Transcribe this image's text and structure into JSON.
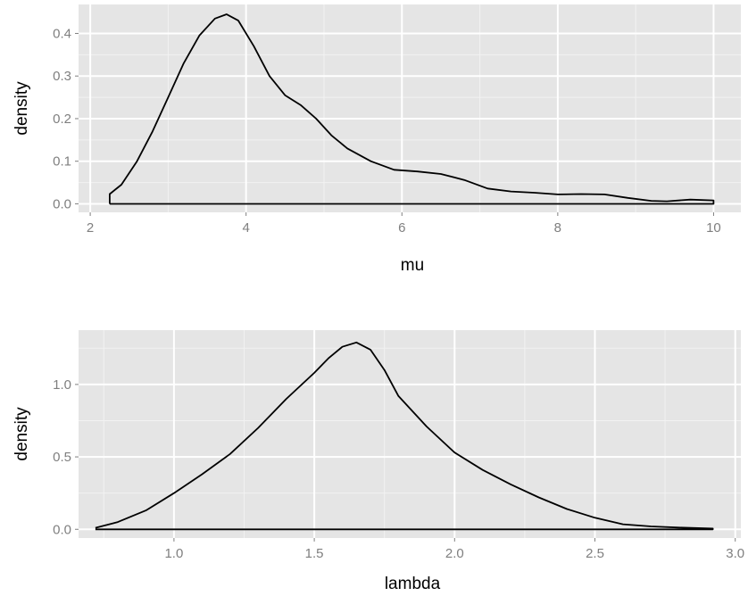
{
  "colors": {
    "panel_background": "#e5e5e5",
    "grid_major": "#ffffff",
    "grid_minor": "#f2f2f2",
    "line": "#000000",
    "tick_label": "#7f7f7f"
  },
  "chart_data": [
    {
      "type": "area",
      "xlabel": "mu",
      "ylabel": "density",
      "xlim": [
        1.85,
        10.35
      ],
      "ylim": [
        -0.02,
        0.468
      ],
      "x_ticks": [
        2,
        4,
        6,
        8,
        10
      ],
      "x_tick_labels": [
        "2",
        "4",
        "6",
        "8",
        "10"
      ],
      "y_ticks": [
        0.0,
        0.1,
        0.2,
        0.3,
        0.4
      ],
      "y_tick_labels": [
        "0.0",
        "0.1",
        "0.2",
        "0.3",
        "0.4"
      ],
      "x_minor_ticks": [
        3,
        5,
        7,
        9
      ],
      "y_minor_ticks": [
        0.05,
        0.15,
        0.25,
        0.35
      ],
      "grid": true,
      "fill": "none",
      "series": [
        {
          "x": [
            2.25,
            2.25,
            2.4,
            2.6,
            2.8,
            3.0,
            3.2,
            3.4,
            3.6,
            3.75,
            3.9,
            4.1,
            4.3,
            4.5,
            4.7,
            4.9,
            5.1,
            5.3,
            5.6,
            5.9,
            6.2,
            6.5,
            6.8,
            7.1,
            7.4,
            7.7,
            8.0,
            8.3,
            8.6,
            8.9,
            9.2,
            9.4,
            9.7,
            10.0,
            10.0,
            2.25
          ],
          "y": [
            0.0,
            0.023,
            0.045,
            0.1,
            0.17,
            0.25,
            0.33,
            0.395,
            0.435,
            0.445,
            0.43,
            0.37,
            0.3,
            0.255,
            0.232,
            0.2,
            0.16,
            0.13,
            0.1,
            0.08,
            0.076,
            0.07,
            0.056,
            0.036,
            0.029,
            0.026,
            0.022,
            0.023,
            0.022,
            0.014,
            0.007,
            0.006,
            0.01,
            0.008,
            0.0,
            0.0
          ]
        }
      ]
    },
    {
      "type": "area",
      "xlabel": "lambda",
      "ylabel": "density",
      "xlim": [
        0.66,
        3.02
      ],
      "ylim": [
        -0.06,
        1.375
      ],
      "x_ticks": [
        1.0,
        1.5,
        2.0,
        2.5,
        3.0
      ],
      "x_tick_labels": [
        "1.0",
        "1.5",
        "2.0",
        "2.5",
        "3.0"
      ],
      "y_ticks": [
        0.0,
        0.5,
        1.0
      ],
      "y_tick_labels": [
        "0.0",
        "0.5",
        "1.0"
      ],
      "x_minor_ticks": [
        0.75,
        1.25,
        1.75,
        2.25,
        2.75
      ],
      "y_minor_ticks": [
        0.25,
        0.75,
        1.25
      ],
      "grid": true,
      "fill": "none",
      "series": [
        {
          "x": [
            0.72,
            0.8,
            0.9,
            1.0,
            1.1,
            1.2,
            1.3,
            1.4,
            1.5,
            1.55,
            1.6,
            1.65,
            1.7,
            1.75,
            1.8,
            1.9,
            2.0,
            2.1,
            2.2,
            2.3,
            2.4,
            2.5,
            2.6,
            2.7,
            2.8,
            2.92,
            2.92,
            0.72
          ],
          "y": [
            0.01,
            0.05,
            0.13,
            0.25,
            0.38,
            0.52,
            0.7,
            0.9,
            1.08,
            1.18,
            1.26,
            1.29,
            1.24,
            1.1,
            0.92,
            0.71,
            0.53,
            0.41,
            0.31,
            0.22,
            0.14,
            0.08,
            0.035,
            0.02,
            0.012,
            0.005,
            0.0,
            0.0
          ]
        }
      ]
    }
  ]
}
